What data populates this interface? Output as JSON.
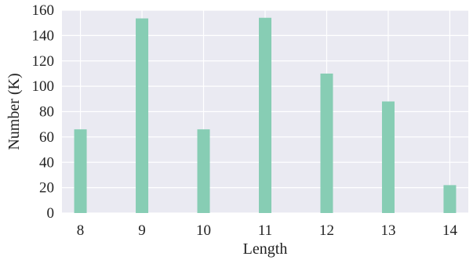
{
  "chart_data": {
    "type": "bar",
    "title": "",
    "xlabel": "Length",
    "ylabel": "Number (K)",
    "categories": [
      "8",
      "9",
      "10",
      "11",
      "12",
      "13",
      "14"
    ],
    "x": [
      8,
      9,
      10,
      11,
      12,
      13,
      14
    ],
    "values": [
      66,
      153.5,
      66,
      154,
      110,
      88,
      22
    ],
    "xlim": [
      7.7,
      14.3
    ],
    "ylim": [
      0,
      160
    ],
    "yticks": [
      "0",
      "20",
      "40",
      "60",
      "80",
      "100",
      "120",
      "140",
      "160"
    ],
    "grid": true,
    "legend": "none",
    "colors": {
      "bar": "#87cdb4",
      "plot_background": "#eaeaf2",
      "grid": "#ffffff"
    }
  }
}
